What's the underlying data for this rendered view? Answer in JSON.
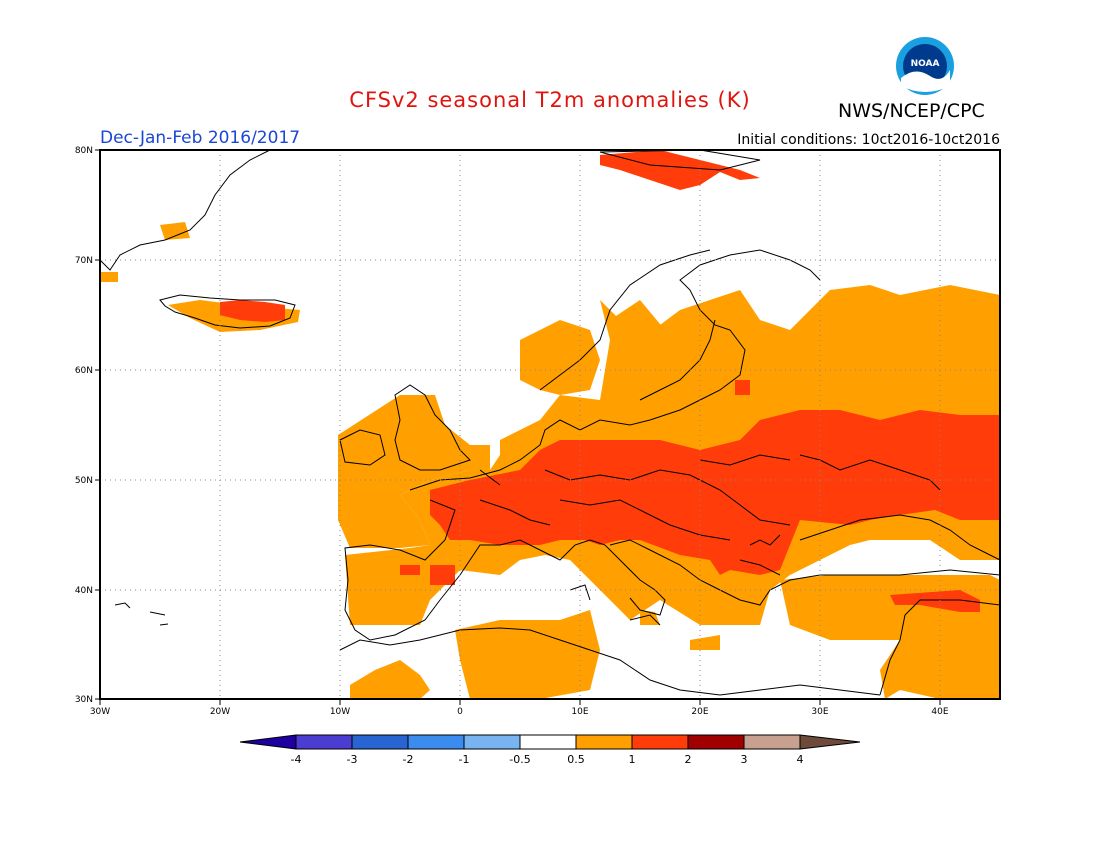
{
  "title": "CFSv2 seasonal T2m anomalies (K)",
  "period": "Dec-Jan-Feb 2016/2017",
  "initial_conditions": "Initial conditions: 10ct2016-10ct2016",
  "agency": "NWS/NCEP/CPC",
  "logo_text": "NOAA",
  "colors": {
    "title": "#e0140e",
    "period": "#1a46d6",
    "anom_0_5_1": "#ffa000",
    "anom_1_2": "#ff3c0a",
    "anom_2_3": "#a00000",
    "anom_3_4": "#c8a090",
    "coast": "#000000"
  },
  "map": {
    "lon_range": [
      -30,
      45
    ],
    "lat_range": [
      30,
      80
    ],
    "lat_labels": [
      "80N",
      "70N",
      "60N",
      "50N",
      "40N",
      "30N"
    ],
    "lon_labels": [
      "30W",
      "20W",
      "10W",
      "0",
      "10E",
      "20E",
      "30E",
      "40E"
    ]
  },
  "colorbar": {
    "labels": [
      "-4",
      "-3",
      "-2",
      "-1",
      "-0.5",
      "0.5",
      "1",
      "2",
      "3",
      "4"
    ],
    "colors": [
      "#1e00a0",
      "#4b3cd2",
      "#2864d2",
      "#3c8cf0",
      "#78b4f0",
      "#ffffff",
      "#ffa000",
      "#ff3c0a",
      "#a00000",
      "#c8a090",
      "#6e4a3a"
    ]
  }
}
